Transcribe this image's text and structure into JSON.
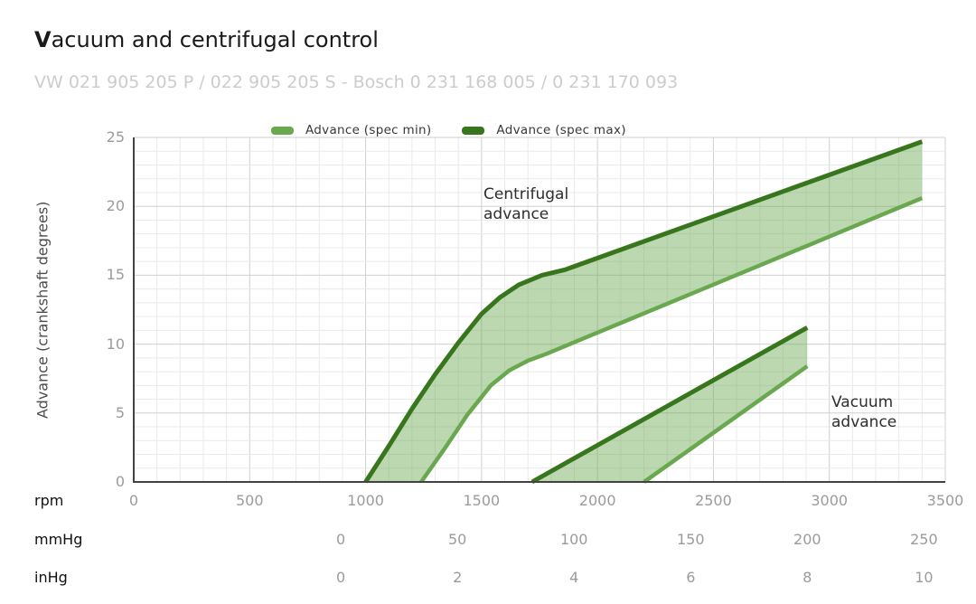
{
  "header": {
    "title": "Vacuum and centrifugal control",
    "subtitle": "VW 021 905 205 P / 022 905 205 S - Bosch 0 231 168 005 / 0 231 170 093"
  },
  "legend": [
    {
      "label": "Advance (spec min)",
      "color": "#6aa84f"
    },
    {
      "label": "Advance (spec max)",
      "color": "#38761d"
    }
  ],
  "y_axis": {
    "label": "Advance (crankshaft degrees)",
    "min": 0,
    "max": 25,
    "ticks": [
      0,
      5,
      10,
      15,
      20,
      25
    ]
  },
  "x_axis_rows": [
    {
      "label": "rpm",
      "unit": "rpm",
      "ticks": [
        0,
        500,
        1000,
        1500,
        2000,
        2500,
        3000,
        3500
      ]
    },
    {
      "label": "mmHg",
      "unit": "mmHg",
      "ticks": [
        0,
        50,
        100,
        150,
        200,
        250
      ]
    },
    {
      "label": "inHg",
      "unit": "inHg",
      "ticks": [
        0,
        2,
        4,
        6,
        8,
        10
      ]
    }
  ],
  "annotations": [
    {
      "text": "Centrifugal advance"
    },
    {
      "text": "Vacuum advance"
    }
  ],
  "chart_data": {
    "type": "area",
    "title": "Vacuum and centrifugal control",
    "subtitle": "VW 021 905 205 P / 022 905 205 S - Bosch 0 231 168 005 / 0 231 170 093",
    "ylabel": "Advance (crankshaft degrees)",
    "ylim": [
      0,
      25
    ],
    "grid": "minor+major",
    "legend_position": "top",
    "x_axes": {
      "rpm": {
        "min": 0,
        "max": 3500,
        "ticks": [
          0,
          500,
          1000,
          1500,
          2000,
          2500,
          3000,
          3500
        ]
      },
      "mmHg": {
        "ticks": [
          0,
          50,
          100,
          150,
          200,
          250
        ],
        "rpm_equiv_at_0": 893,
        "rpm_equiv_per_mmHg": 10.06
      },
      "inHg": {
        "ticks": [
          0,
          2,
          4,
          6,
          8,
          10
        ],
        "mmHg_per_inHg_column": 25
      }
    },
    "colors": {
      "spec_min": "#6aa84f",
      "spec_max": "#38761d",
      "band_fill": "rgba(106,168,79,0.45)"
    },
    "bands": [
      {
        "name": "Centrifugal advance",
        "x_unit": "rpm",
        "max_points": [
          [
            1000,
            0
          ],
          [
            1100,
            2.6
          ],
          [
            1200,
            5.3
          ],
          [
            1300,
            7.8
          ],
          [
            1400,
            10.1
          ],
          [
            1500,
            12.2
          ],
          [
            1580,
            13.4
          ],
          [
            1660,
            14.3
          ],
          [
            1760,
            15.0
          ],
          [
            1860,
            15.4
          ],
          [
            3400,
            24.7
          ]
        ],
        "min_points": [
          [
            1240,
            0
          ],
          [
            1340,
            2.4
          ],
          [
            1440,
            4.9
          ],
          [
            1540,
            7.0
          ],
          [
            1620,
            8.1
          ],
          [
            1700,
            8.8
          ],
          [
            1780,
            9.3
          ],
          [
            3400,
            20.6
          ]
        ]
      },
      {
        "name": "Vacuum advance",
        "x_unit": "mmHg",
        "max_points": [
          [
            82,
            0
          ],
          [
            200,
            11.2
          ]
        ],
        "min_points": [
          [
            130,
            0
          ],
          [
            200,
            8.4
          ]
        ]
      }
    ]
  }
}
